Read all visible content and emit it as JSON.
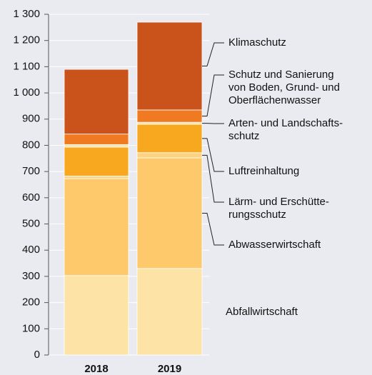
{
  "chart_data": {
    "type": "stacked_bar",
    "categories": [
      "2018",
      "2019"
    ],
    "series": [
      {
        "name": "Abfallwirtschaft",
        "color": "#fee3a6",
        "values": [
          303,
          330
        ]
      },
      {
        "name": "Abwasserwirtschaft",
        "color": "#fdc96b",
        "values": [
          370,
          422
        ]
      },
      {
        "name": "Lärm- und Erschütte-\nrungsschutz",
        "color": "#fdd383",
        "values": [
          10,
          20
        ]
      },
      {
        "name": "Luftreinhaltung",
        "color": "#f8a81e",
        "values": [
          110,
          108
        ]
      },
      {
        "name": "Arten- und Landschafts-\nschutz",
        "color": "#fde3a6",
        "values": [
          10,
          8
        ]
      },
      {
        "name": "Schutz und Sanierung\nvon Boden, Grund- und\nOberflächenwasser",
        "color": "#f07a22",
        "values": [
          40,
          47
        ]
      },
      {
        "name": "Klimaschutz",
        "color": "#c9531a",
        "values": [
          247,
          335
        ]
      }
    ],
    "ylim": [
      0,
      1300
    ],
    "yticks": [
      0,
      100,
      200,
      300,
      400,
      500,
      600,
      700,
      800,
      900,
      {
        "value": 1000,
        "label": "1 000"
      },
      {
        "value": 1100,
        "label": "1 100"
      },
      {
        "value": 1200,
        "label": "1 200"
      },
      {
        "value": 1300,
        "label": "1 300"
      }
    ],
    "grid": true
  }
}
